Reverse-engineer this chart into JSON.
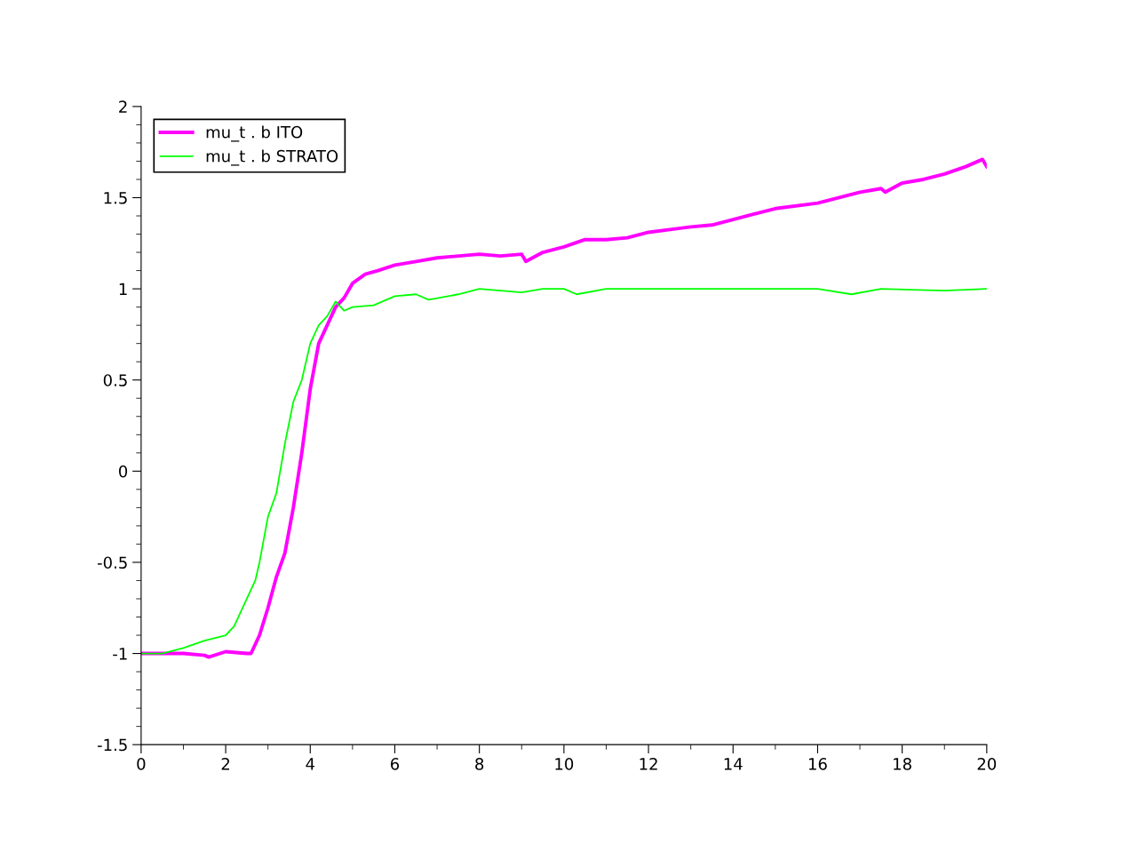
{
  "chart_data": {
    "type": "line",
    "xlim": [
      0,
      20
    ],
    "ylim": [
      -1.5,
      2
    ],
    "xticks": [
      0,
      2,
      4,
      6,
      8,
      10,
      12,
      14,
      16,
      18,
      20
    ],
    "yticks": [
      -1.5,
      -1,
      -0.5,
      0,
      0.5,
      1,
      1.5,
      2
    ],
    "legend": "top left",
    "grid": false,
    "series": [
      {
        "name": "mu_t . b ITO",
        "color": "#ff00ff",
        "x": [
          0,
          1,
          1.5,
          1.6,
          2,
          2.5,
          2.6,
          2.8,
          3.0,
          3.2,
          3.4,
          3.6,
          3.8,
          4.0,
          4.2,
          4.4,
          4.6,
          4.8,
          5.0,
          5.3,
          5.6,
          6,
          6.5,
          7,
          8,
          8.5,
          9,
          9.1,
          9.5,
          10,
          10.5,
          11,
          11.5,
          12,
          13,
          13.5,
          14,
          14.5,
          15,
          16,
          17,
          17.5,
          17.6,
          18,
          18.5,
          19,
          19.5,
          19.9,
          20
        ],
        "values": [
          -1,
          -1.0,
          -1.01,
          -1.02,
          -0.99,
          -1.0,
          -1.0,
          -0.9,
          -0.75,
          -0.58,
          -0.45,
          -0.2,
          0.1,
          0.45,
          0.7,
          0.8,
          0.9,
          0.95,
          1.03,
          1.08,
          1.1,
          1.13,
          1.15,
          1.17,
          1.19,
          1.18,
          1.19,
          1.15,
          1.2,
          1.23,
          1.27,
          1.27,
          1.28,
          1.31,
          1.34,
          1.35,
          1.38,
          1.41,
          1.44,
          1.47,
          1.53,
          1.55,
          1.53,
          1.58,
          1.6,
          1.63,
          1.67,
          1.71,
          1.67
        ]
      },
      {
        "name": "mu_t . b STRATO",
        "color": "#00ff00",
        "x": [
          0,
          0.5,
          1,
          1.5,
          2,
          2.2,
          2.5,
          2.7,
          2.8,
          3.0,
          3.2,
          3.4,
          3.6,
          3.8,
          4.0,
          4.2,
          4.4,
          4.6,
          4.8,
          5.0,
          5.5,
          6,
          6.5,
          6.8,
          7.5,
          8,
          9,
          9.5,
          10,
          10.3,
          11,
          12,
          14,
          16,
          16.8,
          17.5,
          19,
          20
        ],
        "values": [
          -1,
          -1,
          -0.97,
          -0.93,
          -0.9,
          -0.85,
          -0.7,
          -0.6,
          -0.5,
          -0.25,
          -0.12,
          0.15,
          0.38,
          0.5,
          0.7,
          0.8,
          0.85,
          0.93,
          0.88,
          0.9,
          0.91,
          0.96,
          0.97,
          0.94,
          0.97,
          1.0,
          0.98,
          1.0,
          1.0,
          0.97,
          1.0,
          1.0,
          1.0,
          1.0,
          0.97,
          1.0,
          0.99,
          1.0
        ]
      }
    ]
  }
}
